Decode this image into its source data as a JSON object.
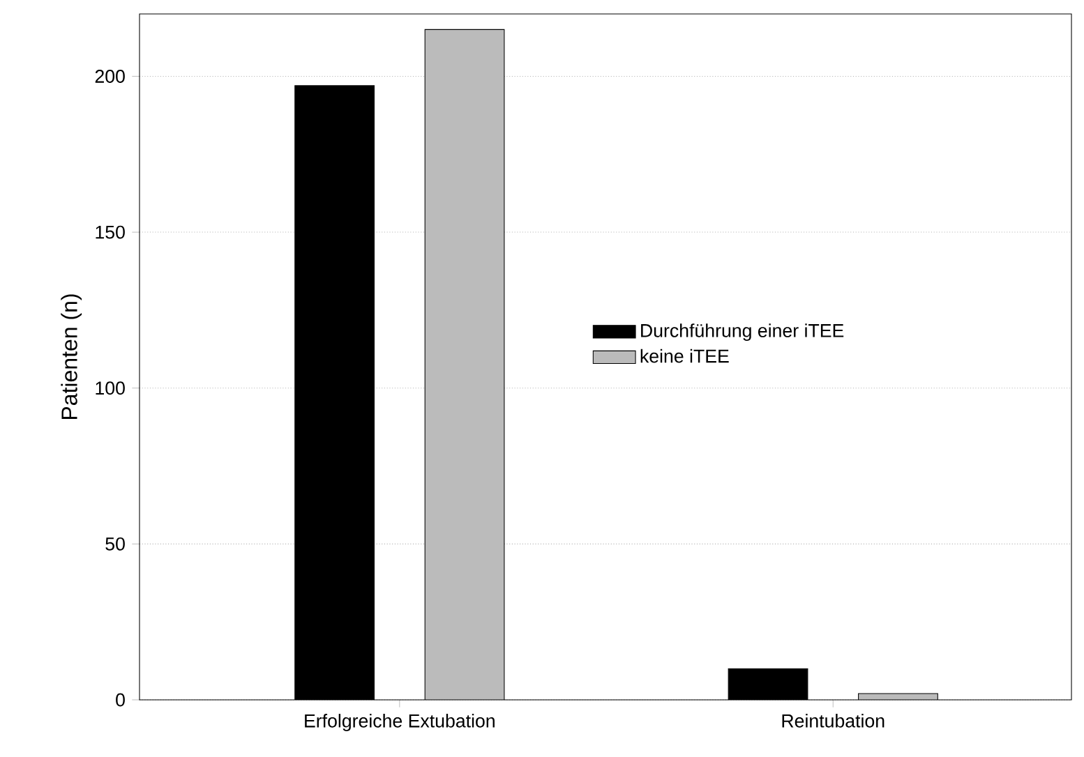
{
  "chart_data": {
    "type": "bar",
    "ylabel": "Patienten (n)",
    "categories": [
      "Erfolgreiche Extubation",
      "Reintubation"
    ],
    "series": [
      {
        "name": "Durchführung einer iTEE",
        "color": "#000000",
        "values": [
          197,
          10
        ]
      },
      {
        "name": "keine iTEE",
        "color": "#bbbbbb",
        "values": [
          215,
          2
        ]
      }
    ],
    "ylim": [
      0,
      220
    ],
    "yticks": [
      0,
      50,
      100,
      150,
      200
    ],
    "grid": "y",
    "legend": "right"
  }
}
